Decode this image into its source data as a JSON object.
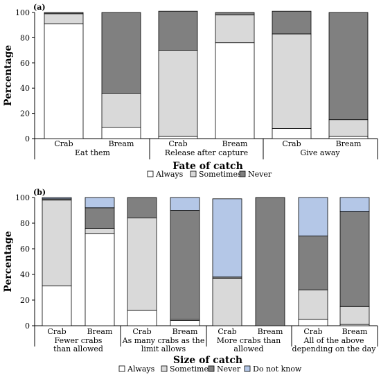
{
  "chart_data": [
    {
      "panel": "(a)",
      "type": "bar",
      "stacked": true,
      "ylabel": "Percentage",
      "xlabel": "Fate of catch",
      "ylim": [
        0,
        100
      ],
      "yticks": [
        0,
        20,
        40,
        60,
        80,
        100
      ],
      "groups": [
        {
          "label": "Eat them",
          "categories": [
            "Crab",
            "Bream"
          ]
        },
        {
          "label": "Release after capture",
          "categories": [
            "Crab",
            "Bream"
          ]
        },
        {
          "label": "Give away",
          "categories": [
            "Crab",
            "Bream"
          ]
        }
      ],
      "series": [
        {
          "name": "Always",
          "color": "#ffffff",
          "values": [
            91,
            9,
            2,
            76,
            8,
            2
          ]
        },
        {
          "name": "Sometimes",
          "color": "#d9d9d9",
          "values": [
            8,
            27,
            68,
            22,
            75,
            13
          ]
        },
        {
          "name": "Never",
          "color": "#808080",
          "values": [
            1,
            64,
            31,
            2,
            18,
            85
          ]
        }
      ]
    },
    {
      "panel": "(b)",
      "type": "bar",
      "stacked": true,
      "ylabel": "Percentage",
      "xlabel": "Size of catch",
      "ylim": [
        0,
        100
      ],
      "yticks": [
        0,
        20,
        40,
        60,
        80,
        100
      ],
      "groups": [
        {
          "label": "Fewer crabs than allowed",
          "label_lines": [
            "Fewer crabs",
            "than allowed"
          ],
          "categories": [
            "Crab",
            "Bream"
          ]
        },
        {
          "label": "As many crabs as the limit allows",
          "label_lines": [
            "As many crabs as the",
            "limit allows"
          ],
          "categories": [
            "Crab",
            "Bream"
          ]
        },
        {
          "label": "More crabs than allowed",
          "label_lines": [
            "More crabs than",
            "allowed"
          ],
          "categories": [
            "Crab",
            "Bream"
          ]
        },
        {
          "label": "All of the above depending on the day",
          "label_lines": [
            "All of the above",
            "depending on the day"
          ],
          "categories": [
            "Crab",
            "Bream"
          ]
        }
      ],
      "series": [
        {
          "name": "Always",
          "color": "#ffffff",
          "values": [
            31,
            72,
            12,
            4,
            0,
            0,
            5,
            1
          ]
        },
        {
          "name": "Sometimes",
          "color": "#d9d9d9",
          "values": [
            67,
            4,
            72,
            1,
            37,
            0,
            23,
            14
          ]
        },
        {
          "name": "Never",
          "color": "#808080",
          "values": [
            1,
            16,
            16,
            85,
            1,
            100,
            42,
            74
          ]
        },
        {
          "name": "Do not know",
          "color": "#b4c7e7",
          "values": [
            1,
            8,
            0,
            10,
            61,
            0,
            30,
            11
          ]
        }
      ]
    }
  ]
}
